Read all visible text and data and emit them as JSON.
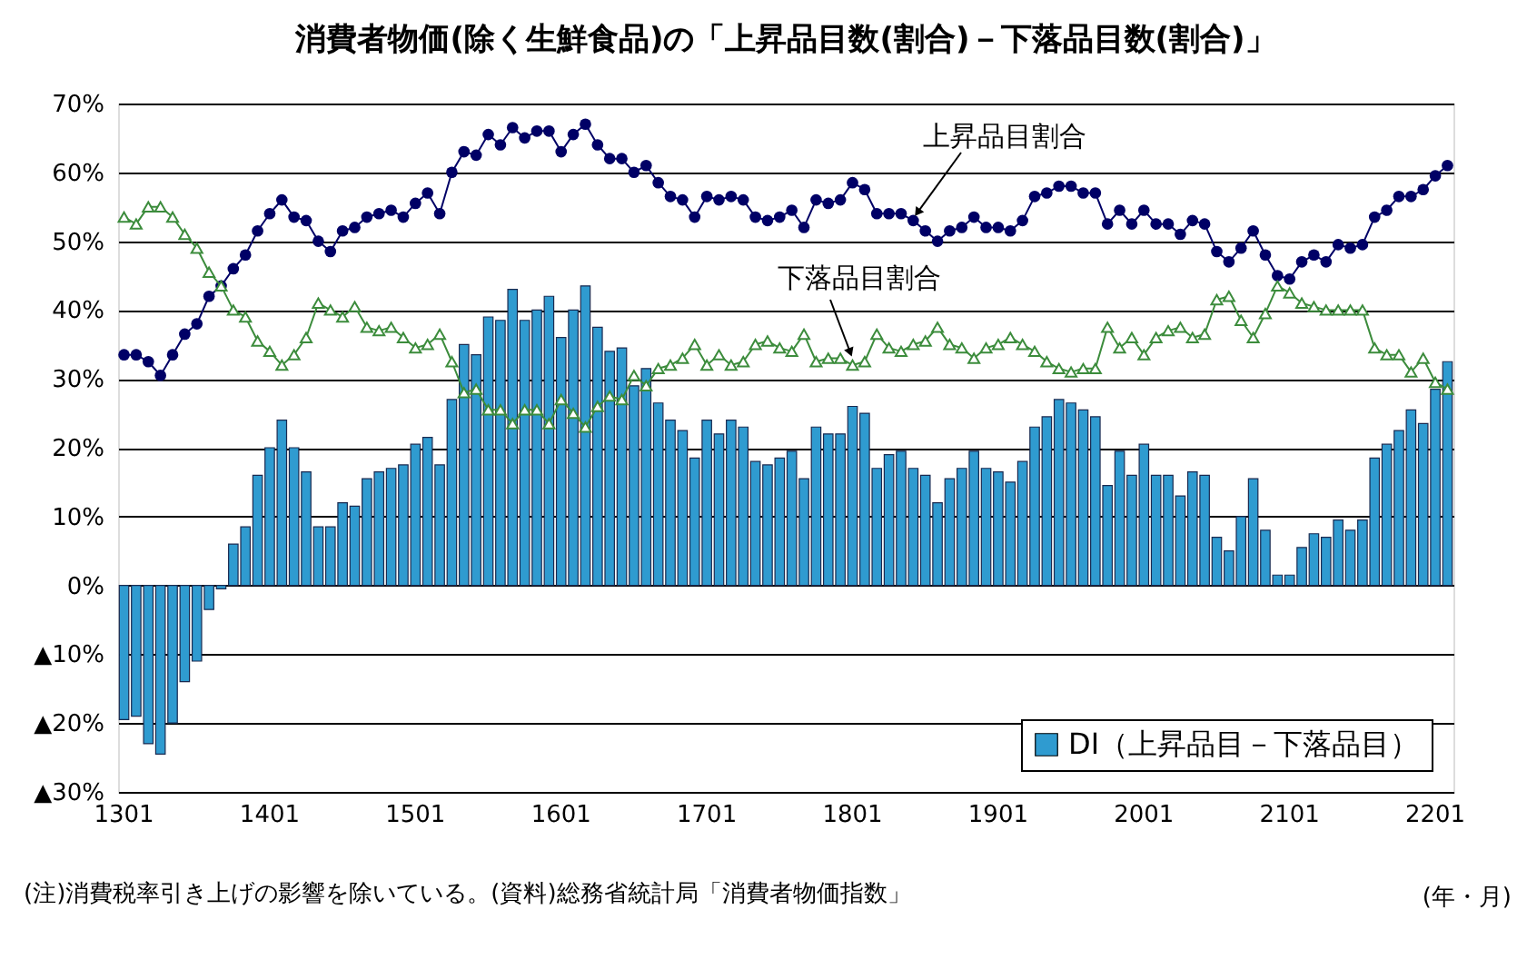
{
  "chart_data": {
    "type": "bar",
    "title": "消費者物価(除く生鮮食品)の「上昇品目数(割合)－下落品目数(割合)」",
    "xlabel": "(年・月)",
    "annotations": [
      "(注)消費税率引き上げの影響を除いている。(資料)総務省統計局「消費者物価指数」"
    ],
    "categories": [
      "1301",
      null,
      null,
      null,
      null,
      null,
      null,
      null,
      null,
      null,
      null,
      null,
      "1401",
      null,
      null,
      null,
      null,
      null,
      null,
      null,
      null,
      null,
      null,
      null,
      "1501",
      null,
      null,
      null,
      null,
      null,
      null,
      null,
      null,
      null,
      null,
      null,
      "1601",
      null,
      null,
      null,
      null,
      null,
      null,
      null,
      null,
      null,
      null,
      null,
      "1701",
      null,
      null,
      null,
      null,
      null,
      null,
      null,
      null,
      null,
      null,
      null,
      "1801",
      null,
      null,
      null,
      null,
      null,
      null,
      null,
      null,
      null,
      null,
      null,
      "1901",
      null,
      null,
      null,
      null,
      null,
      null,
      null,
      null,
      null,
      null,
      null,
      "2001",
      null,
      null,
      null,
      null,
      null,
      null,
      null,
      null,
      null,
      null,
      null,
      "2101",
      null,
      null,
      null,
      null,
      null,
      null,
      null,
      null,
      null,
      null,
      null,
      "2201",
      null
    ],
    "ylim": [
      -30,
      70
    ],
    "yticks": [
      {
        "value": -30,
        "label": "▲30%"
      },
      {
        "value": -20,
        "label": "▲20%"
      },
      {
        "value": -10,
        "label": "▲10%"
      },
      {
        "value": 0,
        "label": "0%"
      },
      {
        "value": 10,
        "label": "10%"
      },
      {
        "value": 20,
        "label": "20%"
      },
      {
        "value": 30,
        "label": "30%"
      },
      {
        "value": 40,
        "label": "40%"
      },
      {
        "value": 50,
        "label": "50%"
      },
      {
        "value": 60,
        "label": "60%"
      },
      {
        "value": 70,
        "label": "70%"
      }
    ],
    "grid": "y",
    "legend": "bottom right",
    "series": [
      {
        "name": "DI（上昇品目－下落品目）",
        "color": "#2f9bd0",
        "values": [
          -19.5,
          -19,
          -23,
          -24.5,
          -20,
          -14,
          -11,
          -3.5,
          -0.5,
          6,
          8.5,
          16,
          20,
          24,
          20,
          16.5,
          8.5,
          8.5,
          12,
          11.5,
          15.5,
          16.5,
          17,
          17.5,
          20.5,
          21.5,
          17.5,
          27,
          35,
          33.5,
          39,
          38.5,
          43,
          38.5,
          40,
          42,
          36,
          40,
          43.5,
          37.5,
          34,
          34.5,
          29,
          31.5,
          26.5,
          24,
          22.5,
          18.5,
          24,
          22,
          24,
          23,
          18,
          17.5,
          18.5,
          19.5,
          15.5,
          23,
          22,
          22,
          26,
          25,
          17,
          19,
          19.5,
          17,
          16,
          12,
          15.5,
          17,
          19.5,
          17,
          16.5,
          15,
          18,
          23,
          24.5,
          27,
          26.5,
          25.5,
          24.5,
          14.5,
          19.5,
          16,
          20.5,
          16,
          16,
          13,
          16.5,
          16,
          7,
          5,
          10,
          15.5,
          8,
          1.5,
          1.5,
          5.5,
          7.5,
          7,
          9.5,
          8,
          9.5,
          18.5,
          20.5,
          22.5,
          25.5,
          23.5,
          28.5,
          32.5
        ]
      },
      {
        "name": "上昇品目割合",
        "type": "line",
        "color": "#000066",
        "marker": "circle",
        "values": [
          33.5,
          33.5,
          32.5,
          30.5,
          33.5,
          36.5,
          38,
          42,
          43.5,
          46,
          48,
          51.5,
          54,
          56,
          53.5,
          53,
          50,
          48.5,
          51.5,
          52,
          53.5,
          54,
          54.5,
          53.5,
          55.5,
          57,
          54,
          60,
          63,
          62.5,
          65.5,
          64,
          66.5,
          65,
          66,
          66,
          63,
          65.5,
          67,
          64,
          62,
          62,
          60,
          61,
          58.5,
          56.5,
          56,
          53.5,
          56.5,
          56,
          56.5,
          56,
          53.5,
          53,
          53.5,
          54.5,
          52,
          56,
          55.5,
          56,
          58.5,
          57.5,
          54,
          54,
          54,
          53,
          51.5,
          50,
          51.5,
          52,
          53.5,
          52,
          52,
          51.5,
          53,
          56.5,
          57,
          58,
          58,
          57,
          57,
          52.5,
          54.5,
          52.5,
          54.5,
          52.5,
          52.5,
          51,
          53,
          52.5,
          48.5,
          47,
          49,
          51.5,
          48,
          45,
          44.5,
          47,
          48,
          47,
          49.5,
          49,
          49.5,
          53.5,
          54.5,
          56.5,
          56.5,
          57.5,
          59.5,
          61
        ]
      },
      {
        "name": "下落品目割合",
        "type": "line",
        "color": "#3c8c3c",
        "marker": "triangle",
        "values": [
          53.5,
          52.5,
          55,
          55,
          53.5,
          51,
          49,
          45.5,
          43.5,
          40,
          39,
          35.5,
          34,
          32,
          33.5,
          36,
          41,
          40,
          39,
          40.5,
          37.5,
          37,
          37.5,
          36,
          34.5,
          35,
          36.5,
          32.5,
          28,
          28.5,
          25.5,
          25.5,
          23.5,
          25.5,
          25.5,
          23.5,
          27,
          25,
          23,
          26,
          27.5,
          27,
          30.5,
          29,
          31.5,
          32,
          33,
          35,
          32,
          33.5,
          32,
          32.5,
          35,
          35.5,
          34.5,
          34,
          36.5,
          32.5,
          33,
          33,
          32,
          32.5,
          36.5,
          34.5,
          34,
          35,
          35.5,
          37.5,
          35,
          34.5,
          33,
          34.5,
          35,
          36,
          35,
          34,
          32.5,
          31.5,
          31,
          31.5,
          31.5,
          37.5,
          34.5,
          36,
          33.5,
          36,
          37,
          37.5,
          36,
          36.5,
          41.5,
          42,
          38.5,
          36,
          39.5,
          43.5,
          42.5,
          41,
          40.5,
          40,
          40,
          40,
          40,
          34.5,
          33.5,
          33.5,
          31,
          33,
          29.5,
          28.5
        ]
      }
    ]
  }
}
